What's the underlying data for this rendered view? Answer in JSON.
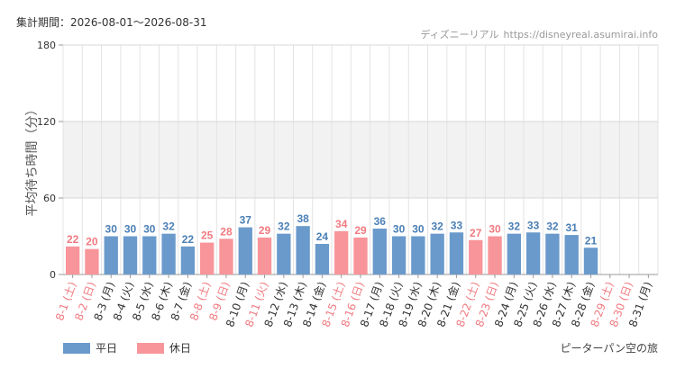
{
  "header": {
    "period_label": "集計期間：2026-08-01〜2026-08-31",
    "site_name": "ディズニーリアル",
    "site_url": "https://disneyreal.asumirai.info"
  },
  "footer": {
    "ride_name": "ピーターパン空の旅"
  },
  "colors": {
    "weekday": "#6a9acb",
    "holiday": "#f8959a",
    "weekday_label": "#4a7fb5",
    "holiday_label": "#f07a80",
    "band": "#f2f2f2",
    "grid": "#e3e3e3",
    "axis_text": "#333333"
  },
  "chart_data": {
    "type": "bar",
    "ylabel": "平均待ち時間（分）",
    "ylim": [
      0,
      180
    ],
    "yticks": [
      0,
      60,
      120,
      180
    ],
    "shaded_band": [
      60,
      120
    ],
    "grid": true,
    "legend_position": "bottom-left",
    "legend": [
      {
        "name": "平日",
        "type": "weekday"
      },
      {
        "name": "休日",
        "type": "holiday"
      }
    ],
    "categories": [
      "8-1 (土)",
      "8-2 (日)",
      "8-3 (月)",
      "8-4 (火)",
      "8-5 (水)",
      "8-6 (木)",
      "8-7 (金)",
      "8-8 (土)",
      "8-9 (日)",
      "8-10 (月)",
      "8-11 (火)",
      "8-12 (水)",
      "8-13 (木)",
      "8-14 (金)",
      "8-15 (土)",
      "8-16 (日)",
      "8-17 (月)",
      "8-18 (火)",
      "8-19 (水)",
      "8-20 (木)",
      "8-21 (金)",
      "8-22 (土)",
      "8-23 (日)",
      "8-24 (月)",
      "8-25 (火)",
      "8-26 (水)",
      "8-27 (木)",
      "8-28 (金)",
      "8-29 (土)",
      "8-30 (日)",
      "8-31 (月)"
    ],
    "day_types": [
      "holiday",
      "holiday",
      "weekday",
      "weekday",
      "weekday",
      "weekday",
      "weekday",
      "holiday",
      "holiday",
      "weekday",
      "holiday",
      "weekday",
      "weekday",
      "weekday",
      "holiday",
      "holiday",
      "weekday",
      "weekday",
      "weekday",
      "weekday",
      "weekday",
      "holiday",
      "holiday",
      "weekday",
      "weekday",
      "weekday",
      "weekday",
      "weekday",
      "holiday",
      "holiday",
      "weekday"
    ],
    "values": [
      22,
      20,
      30,
      30,
      30,
      32,
      22,
      25,
      28,
      37,
      29,
      32,
      38,
      24,
      34,
      29,
      36,
      30,
      30,
      32,
      33,
      27,
      30,
      32,
      33,
      32,
      31,
      21,
      null,
      null,
      null
    ]
  }
}
